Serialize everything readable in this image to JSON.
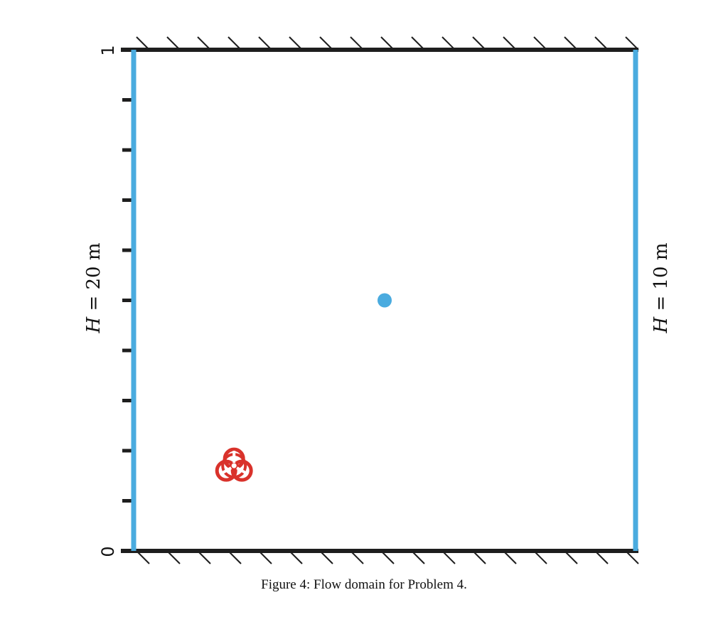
{
  "diagram": {
    "y_axis": {
      "min_label": "0",
      "max_label": "1",
      "tick_count": 11
    },
    "left_boundary": {
      "label_italic": "H",
      "label_rest": " = 20 m",
      "color": "#4aabdf"
    },
    "right_boundary": {
      "label_italic": "H",
      "label_rest": " = 10 m",
      "color": "#4aabdf"
    },
    "wall_color": "#1e1e1e",
    "point": {
      "x": 0.5,
      "y": 0.5,
      "color": "#4aabdf"
    },
    "hazard": {
      "icon": "biohazard-icon",
      "x": 0.2,
      "y": 0.17,
      "color": "#d9322b"
    }
  },
  "caption": "Figure 4: Flow domain for Problem 4."
}
